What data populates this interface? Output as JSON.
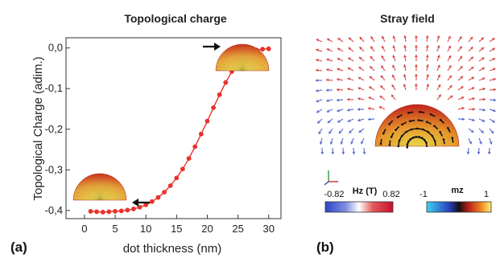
{
  "panel_a": {
    "title": "Topological charge",
    "label": "(a)"
  },
  "panel_b": {
    "title": "Stray field",
    "label": "(b)",
    "colorbar_hz": {
      "title": "Hz (T)",
      "min_label": "-0.82",
      "max_label": "0.82"
    },
    "colorbar_mz": {
      "title": "mz",
      "min_label": "-1",
      "max_label": "1"
    }
  },
  "chart_data": {
    "type": "line",
    "title": "Topological charge",
    "xlabel": "dot thickness (nm)",
    "ylabel": "Topological Charge (adim.)",
    "xlim": [
      -3,
      32
    ],
    "ylim": [
      -0.42,
      0.025
    ],
    "xticks": [
      0,
      5,
      10,
      15,
      20,
      25,
      30
    ],
    "xtick_labels": [
      "0",
      "5",
      "10",
      "15",
      "20",
      "25",
      "30"
    ],
    "yticks": [
      0.0,
      -0.1,
      -0.2,
      -0.3,
      -0.4
    ],
    "ytick_labels": [
      "0,0",
      "-0,1",
      "-0,2",
      "-0,3",
      "-0,4"
    ],
    "series": [
      {
        "color": "#e8322c",
        "x": [
          1,
          2,
          3,
          4,
          5,
          6,
          7,
          8,
          9,
          10,
          11,
          12,
          13,
          14,
          15,
          16,
          17,
          18,
          19,
          20,
          21,
          22,
          23,
          24,
          25,
          26,
          27,
          28,
          29,
          30
        ],
        "y": [
          -0.402,
          -0.403,
          -0.404,
          -0.403,
          -0.402,
          -0.401,
          -0.399,
          -0.396,
          -0.392,
          -0.386,
          -0.378,
          -0.368,
          -0.355,
          -0.339,
          -0.32,
          -0.298,
          -0.272,
          -0.243,
          -0.212,
          -0.18,
          -0.147,
          -0.115,
          -0.085,
          -0.058,
          -0.036,
          -0.02,
          -0.01,
          -0.005,
          -0.003,
          -0.002
        ]
      }
    ]
  }
}
